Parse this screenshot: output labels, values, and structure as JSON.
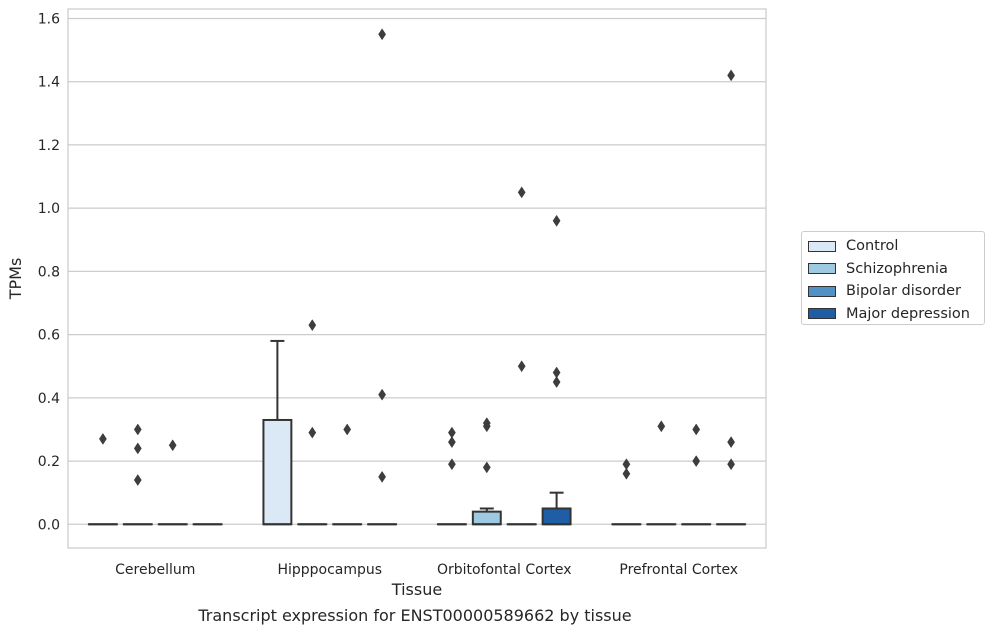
{
  "caption": "Transcript expression for ENST00000589662 by tissue",
  "chart_data": {
    "type": "box",
    "xlabel": "Tissue",
    "ylabel": "TPMs",
    "ylim": [
      -0.075,
      1.63
    ],
    "yticks": [
      "0.0",
      "0.2",
      "0.4",
      "0.6",
      "0.8",
      "1.0",
      "1.2",
      "1.4",
      "1.6"
    ],
    "grid": true,
    "legend_position": "right, outside plot",
    "categories": [
      "Cerebellum",
      "Hipppocampus",
      "Orbitofontal Cortex",
      "Prefrontal Cortex"
    ],
    "series": [
      {
        "name": "Control",
        "color": "#dbe9f6",
        "boxes": [
          {
            "q1": 0,
            "median": 0,
            "q3": 0,
            "whisker_low": 0,
            "whisker_high": 0,
            "outliers": [
              0.27
            ]
          },
          {
            "q1": 0,
            "median": 0,
            "q3": 0.33,
            "whisker_low": 0,
            "whisker_high": 0.58,
            "outliers": []
          },
          {
            "q1": 0,
            "median": 0,
            "q3": 0,
            "whisker_low": 0,
            "whisker_high": 0,
            "outliers": [
              0.29,
              0.26,
              0.19
            ]
          },
          {
            "q1": 0,
            "median": 0,
            "q3": 0,
            "whisker_low": 0,
            "whisker_high": 0,
            "outliers": [
              0.19,
              0.16
            ]
          }
        ]
      },
      {
        "name": "Schizophrenia",
        "color": "#9ecae1",
        "boxes": [
          {
            "q1": 0,
            "median": 0,
            "q3": 0,
            "whisker_low": 0,
            "whisker_high": 0,
            "outliers": [
              0.3,
              0.24,
              0.14
            ]
          },
          {
            "q1": 0,
            "median": 0,
            "q3": 0,
            "whisker_low": 0,
            "whisker_high": 0,
            "outliers": [
              0.63,
              0.29
            ]
          },
          {
            "q1": 0,
            "median": 0,
            "q3": 0.04,
            "whisker_low": 0,
            "whisker_high": 0.05,
            "outliers": [
              0.32,
              0.31,
              0.18
            ]
          },
          {
            "q1": 0,
            "median": 0,
            "q3": 0,
            "whisker_low": 0,
            "whisker_high": 0,
            "outliers": [
              0.31
            ]
          }
        ]
      },
      {
        "name": "Bipolar disorder",
        "color": "#4f92c3",
        "boxes": [
          {
            "q1": 0,
            "median": 0,
            "q3": 0,
            "whisker_low": 0,
            "whisker_high": 0,
            "outliers": [
              0.25
            ]
          },
          {
            "q1": 0,
            "median": 0,
            "q3": 0,
            "whisker_low": 0,
            "whisker_high": 0,
            "outliers": [
              0.3
            ]
          },
          {
            "q1": 0,
            "median": 0,
            "q3": 0,
            "whisker_low": 0,
            "whisker_high": 0,
            "outliers": [
              1.05,
              0.5
            ]
          },
          {
            "q1": 0,
            "median": 0,
            "q3": 0,
            "whisker_low": 0,
            "whisker_high": 0,
            "outliers": [
              0.3,
              0.2
            ]
          }
        ]
      },
      {
        "name": "Major depression",
        "color": "#1f5ea5",
        "boxes": [
          {
            "q1": 0,
            "median": 0,
            "q3": 0,
            "whisker_low": 0,
            "whisker_high": 0,
            "outliers": []
          },
          {
            "q1": 0,
            "median": 0,
            "q3": 0,
            "whisker_low": 0,
            "whisker_high": 0,
            "outliers": [
              1.55,
              0.41,
              0.15
            ]
          },
          {
            "q1": 0,
            "median": 0,
            "q3": 0.05,
            "whisker_low": 0,
            "whisker_high": 0.1,
            "outliers": [
              0.96,
              0.48,
              0.45
            ]
          },
          {
            "q1": 0,
            "median": 0,
            "q3": 0,
            "whisker_low": 0,
            "whisker_high": 0,
            "outliers": [
              1.42,
              0.26,
              0.19
            ]
          }
        ]
      }
    ]
  }
}
